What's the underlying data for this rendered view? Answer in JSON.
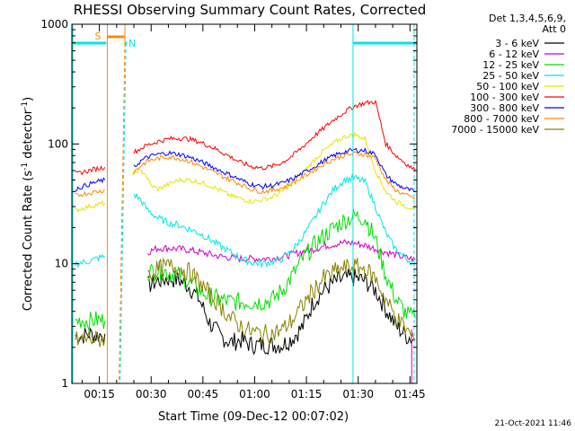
{
  "chart_data": {
    "type": "line",
    "title": "RHESSI Observing Summary Count Rates, Corrected",
    "xlabel": "Start Time (09-Dec-12 00:07:02)",
    "ylabel": "Corrected Count Rate (s⁻¹ detector⁻¹)",
    "ylabel_main": "Corrected Count Rate (s",
    "ylabel_sup1": "-1",
    "ylabel_mid": " detector",
    "ylabel_sup2": "-1",
    "ylabel_end": ")",
    "y_scale": "log",
    "ylim": [
      1,
      1000
    ],
    "xlim_minutes": [
      7.03,
      107.0
    ],
    "x_ticks": [
      {
        "label": "00:15",
        "minutes": 15
      },
      {
        "label": "00:30",
        "minutes": 30
      },
      {
        "label": "00:45",
        "minutes": 45
      },
      {
        "label": "01:00",
        "minutes": 60
      },
      {
        "label": "01:15",
        "minutes": 75
      },
      {
        "label": "01:30",
        "minutes": 90
      },
      {
        "label": "01:45",
        "minutes": 105
      }
    ],
    "y_ticks": [
      {
        "label": "1",
        "value": 1
      },
      {
        "label": "10",
        "value": 10
      },
      {
        "label": "100",
        "value": 100
      },
      {
        "label": "1000",
        "value": 1000
      }
    ],
    "legend": {
      "placement": "right",
      "header_line1": "Det 1,3,4,5,6,9,",
      "header_line2": "Att 0"
    },
    "series": [
      {
        "name": "3 - 6 keV",
        "color": "#000000",
        "x": [
          8,
          10,
          12,
          14,
          16.6
        ],
        "y": [
          2.5,
          2.5,
          2.6,
          2.5,
          2.6
        ],
        "x2": [
          29,
          32,
          35,
          38,
          41,
          44,
          47,
          50,
          53,
          56,
          59,
          62,
          65,
          68,
          71,
          74,
          77,
          80,
          83,
          86,
          89,
          92,
          95,
          98,
          101,
          104,
          106.5
        ],
        "y2": [
          6.5,
          7.2,
          7.5,
          7.3,
          6.5,
          5,
          3.2,
          2.5,
          2.2,
          2.3,
          2.1,
          2.1,
          2.1,
          2.1,
          2.4,
          3,
          4.8,
          6,
          7,
          7.5,
          7.6,
          7.2,
          6,
          4.2,
          3,
          2.5,
          2.3
        ]
      },
      {
        "name": "6 - 12 keV",
        "color": "#cc00cc",
        "x": [
          29,
          32,
          35,
          38,
          41,
          44,
          47,
          50,
          53,
          56,
          59,
          62,
          65,
          68,
          71,
          74,
          77,
          80,
          83,
          86,
          89,
          92,
          95,
          98,
          101,
          104,
          106.5
        ],
        "y": [
          12.5,
          13.5,
          13.5,
          13.3,
          13,
          12.5,
          12,
          11.5,
          11.2,
          11,
          11,
          11,
          11.1,
          11.4,
          12,
          12.6,
          13.2,
          14,
          14.5,
          15,
          14.8,
          14.2,
          13.3,
          12.5,
          11.8,
          11.2,
          10.8
        ]
      },
      {
        "name": "12 - 25 keV",
        "color": "#00dd00",
        "x": [
          8,
          10,
          12,
          14,
          16.6
        ],
        "y": [
          3.3,
          3.4,
          3.3,
          3.4,
          3.3
        ],
        "x2": [
          29,
          32,
          35,
          38,
          41,
          44,
          47,
          50,
          53,
          56,
          59,
          62,
          65,
          68,
          71,
          74,
          77,
          80,
          83,
          86,
          89,
          92,
          95,
          98,
          101,
          104,
          106.5
        ],
        "y2": [
          8.5,
          8.8,
          8.5,
          8,
          7,
          6,
          5.3,
          5,
          4.8,
          4.8,
          4.8,
          4.8,
          5,
          6,
          8,
          11,
          14,
          17,
          20,
          23,
          25,
          24,
          16,
          8,
          5,
          3.8,
          3.5
        ]
      },
      {
        "name": "25 - 50 keV",
        "color": "#00e5e5",
        "x": [
          8,
          10,
          12,
          14,
          16.6
        ],
        "y": [
          10,
          10.2,
          10.5,
          11,
          11.5
        ],
        "x2": [
          25,
          27,
          29,
          32,
          35,
          38,
          41,
          44,
          47,
          50,
          53,
          56,
          59,
          62,
          65,
          68,
          71,
          74,
          77,
          80,
          83,
          86,
          89,
          92,
          95,
          98,
          101,
          104,
          106.5
        ],
        "y2": [
          38,
          34,
          28,
          24,
          22,
          21,
          19.5,
          18,
          16,
          14,
          12.5,
          11,
          10.3,
          10,
          10.3,
          11,
          13,
          17,
          23,
          32,
          42,
          50,
          52,
          48,
          30,
          18,
          13,
          11,
          10
        ]
      },
      {
        "name": "50 - 100 keV",
        "color": "#e5e500",
        "x": [
          8,
          10,
          12,
          14,
          16.6
        ],
        "y": [
          28,
          29,
          30,
          31,
          32
        ],
        "x2": [
          24.5,
          26,
          28,
          30,
          32,
          35,
          38,
          41,
          44,
          47,
          50,
          53,
          56,
          59,
          62,
          65,
          68,
          71,
          74,
          77,
          80,
          83,
          86,
          89,
          92,
          95,
          98,
          101,
          104,
          106.5
        ],
        "y2": [
          55,
          60,
          58,
          45,
          42,
          46,
          50,
          50,
          48,
          45,
          41,
          37,
          35,
          33,
          34,
          36,
          40,
          48,
          58,
          72,
          88,
          102,
          115,
          120,
          110,
          60,
          40,
          33,
          30,
          29
        ]
      },
      {
        "name": "100 - 300 keV",
        "color": "#ff0000",
        "x": [
          8,
          10,
          12,
          14,
          16.6
        ],
        "y": [
          56,
          58,
          60,
          62,
          64
        ],
        "x2": [
          25,
          27,
          29,
          32,
          35,
          38,
          41,
          44,
          47,
          50,
          53,
          56,
          59,
          62,
          65,
          68,
          71,
          74,
          77,
          80,
          83,
          86,
          89,
          92,
          95,
          98,
          101,
          104,
          106.5
        ],
        "y2": [
          85,
          92,
          98,
          105,
          110,
          112,
          110,
          104,
          96,
          87,
          78,
          70,
          65,
          63,
          65,
          70,
          80,
          95,
          115,
          135,
          160,
          185,
          208,
          220,
          225,
          100,
          80,
          68,
          60
        ]
      },
      {
        "name": "300 - 800 keV",
        "color": "#0000ff",
        "x": [
          8,
          10,
          12,
          14,
          16.6
        ],
        "y": [
          42,
          44,
          46,
          48,
          50
        ],
        "x2": [
          25,
          27,
          29,
          32,
          35,
          38,
          41,
          44,
          47,
          50,
          53,
          56,
          59,
          62,
          65,
          68,
          71,
          74,
          77,
          80,
          83,
          86,
          89,
          92,
          95,
          98,
          101,
          104,
          106.5
        ],
        "y2": [
          64,
          72,
          78,
          82,
          84,
          82,
          78,
          72,
          66,
          60,
          55,
          50,
          46,
          44,
          45,
          47,
          51,
          57,
          64,
          72,
          80,
          86,
          89,
          88,
          82,
          55,
          46,
          42,
          40
        ]
      },
      {
        "name": "800 - 7000 keV",
        "color": "#ff8800",
        "x": [
          8,
          10,
          12,
          14,
          16.6
        ],
        "y": [
          37,
          38,
          39,
          40,
          41
        ],
        "x2": [
          25,
          27,
          29,
          32,
          35,
          38,
          41,
          44,
          47,
          50,
          53,
          56,
          59,
          62,
          65,
          68,
          71,
          74,
          77,
          80,
          83,
          86,
          89,
          92,
          95,
          98,
          101,
          104,
          106.5
        ],
        "y2": [
          58,
          66,
          72,
          76,
          78,
          76,
          72,
          66,
          60,
          55,
          50,
          46,
          42,
          40,
          41,
          43,
          47,
          53,
          60,
          68,
          75,
          80,
          83,
          82,
          76,
          50,
          41,
          37,
          35
        ]
      },
      {
        "name": "7000 - 15000 keV",
        "color": "#8b8000",
        "x": [
          8,
          10,
          12,
          14,
          16.6
        ],
        "y": [
          2.3,
          2.3,
          2.4,
          2.3,
          2.4
        ],
        "x2": [
          29,
          32,
          35,
          38,
          41,
          44,
          47,
          50,
          53,
          56,
          59,
          62,
          65,
          68,
          71,
          74,
          77,
          80,
          83,
          86,
          89,
          92,
          95,
          98,
          101,
          104,
          106.5
        ],
        "y2": [
          8,
          9,
          9.5,
          9.3,
          8.5,
          7,
          5.5,
          4.5,
          3.5,
          3,
          2.7,
          2.6,
          2.6,
          2.8,
          3.4,
          4.5,
          6,
          7.5,
          8.5,
          9.2,
          9.4,
          9,
          7.5,
          5,
          3.5,
          2.8,
          2.3
        ]
      }
    ],
    "attenuator_flags": {
      "label_s": "S",
      "label_n": "N",
      "s_color": "#ff8800",
      "n_color": "#00e5e5"
    },
    "footer_date": "21-Oct-2021 11:46"
  }
}
